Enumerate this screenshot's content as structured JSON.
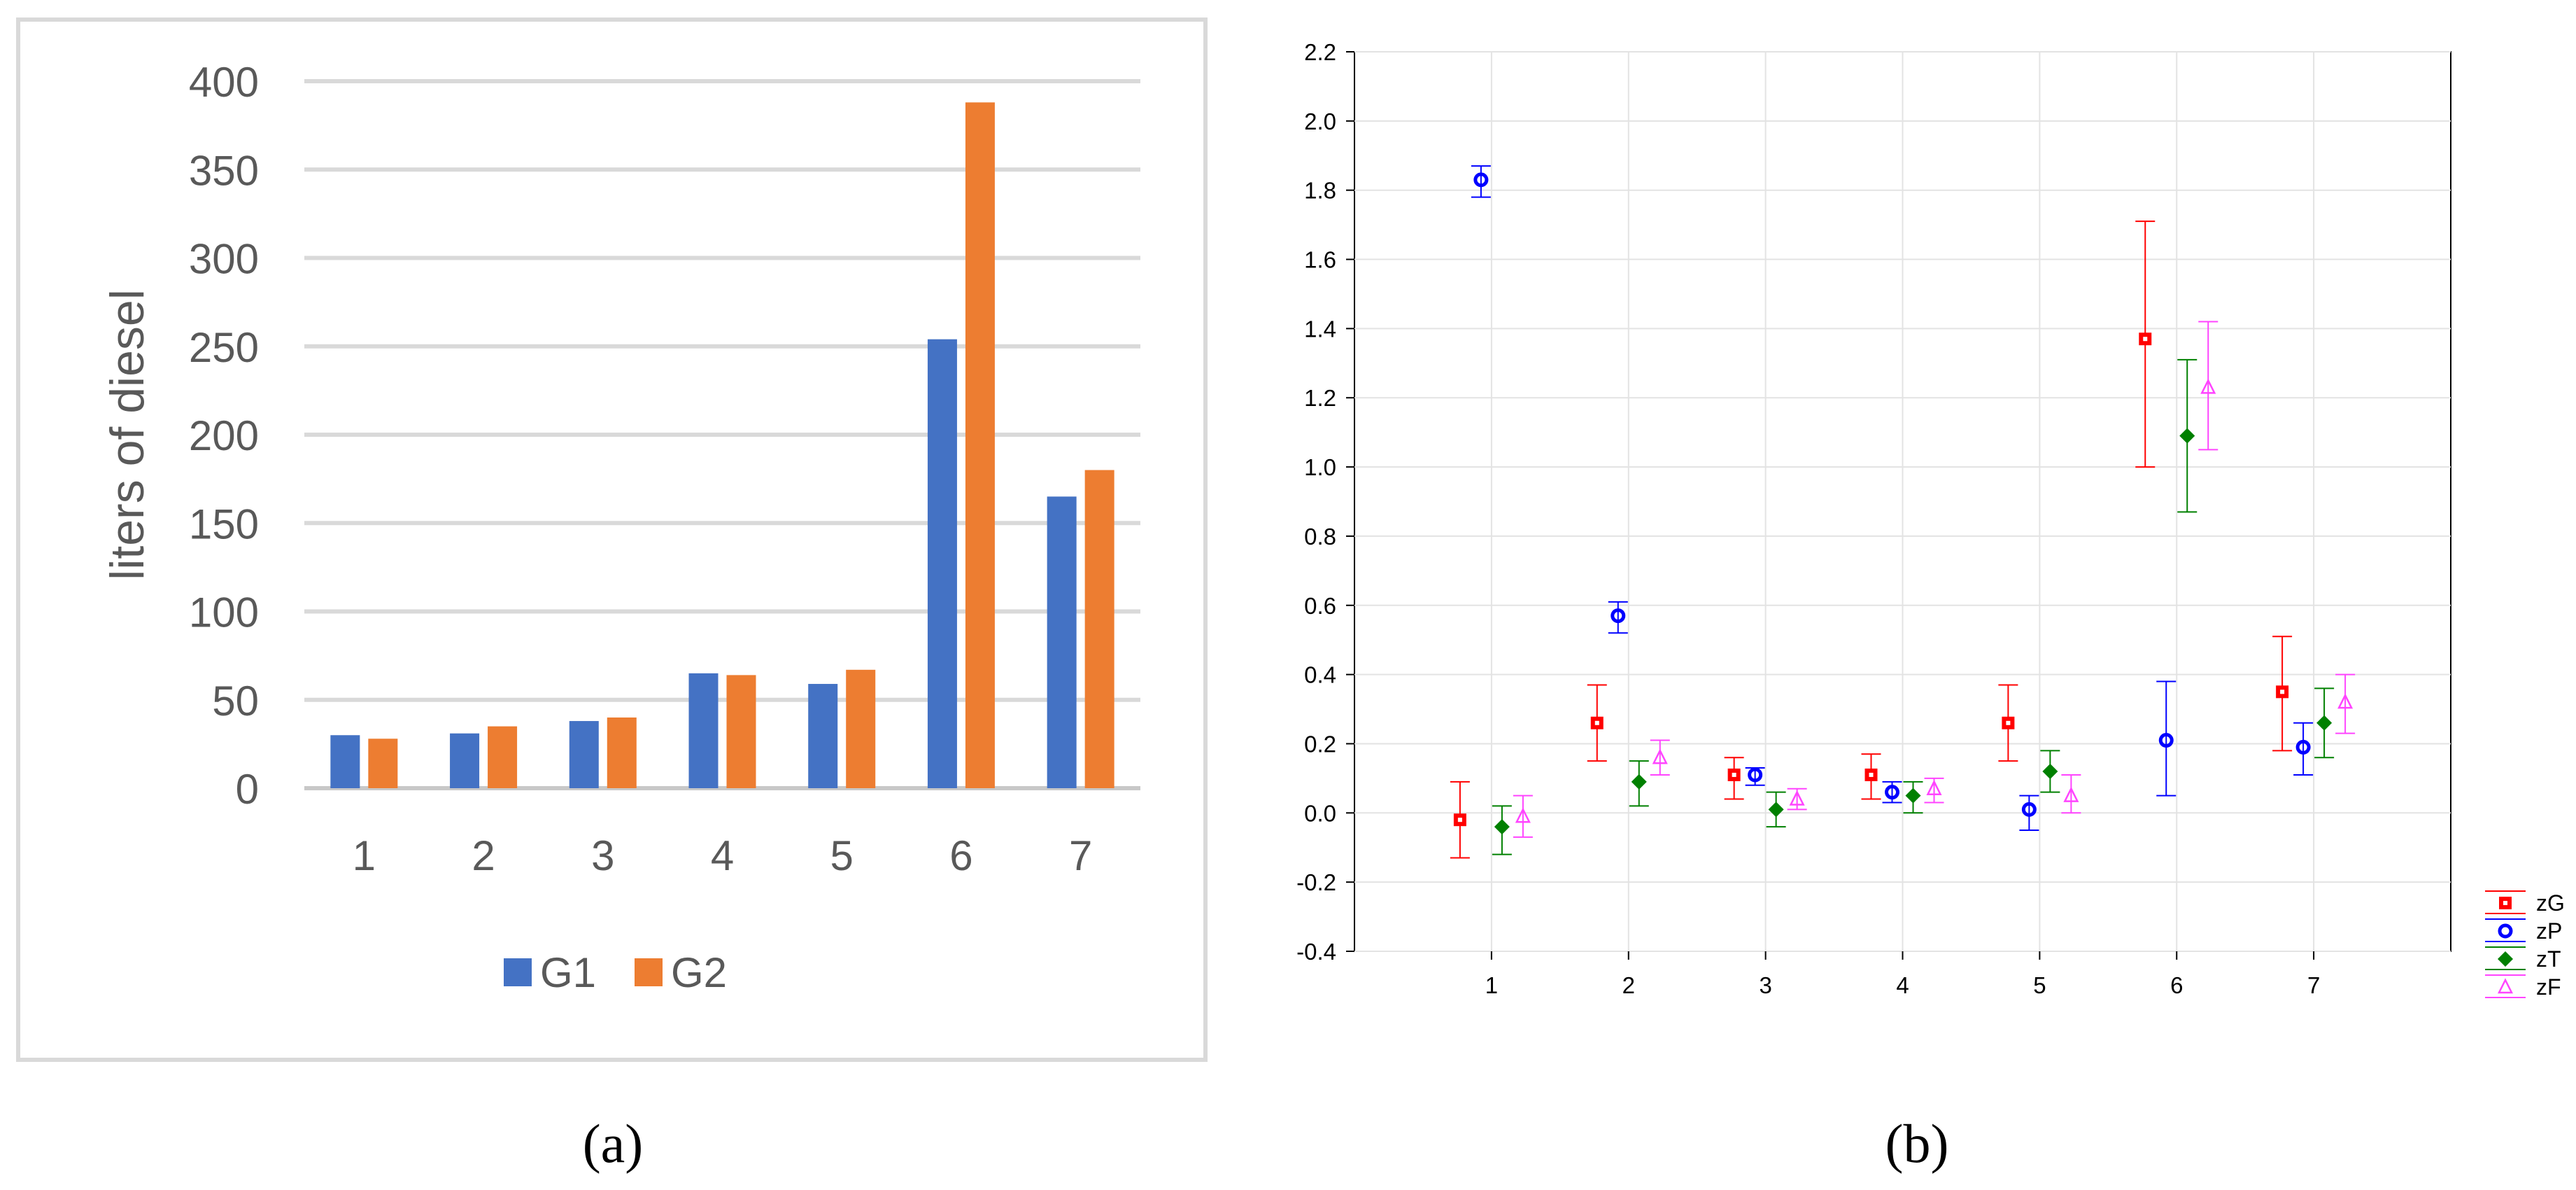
{
  "captions": {
    "a": "(a)",
    "b": "(b)"
  },
  "colors": {
    "G1": "#4472c4",
    "G2": "#ed7d31",
    "zG": "#ff0000",
    "zP": "#0000ff",
    "zT": "#008000",
    "zF": "#ff44ff"
  },
  "chart_data": [
    {
      "type": "bar",
      "title": "",
      "xlabel": "",
      "ylabel": "liters of diesel",
      "categories": [
        "1",
        "2",
        "3",
        "4",
        "5",
        "6",
        "7"
      ],
      "ylim": [
        0,
        400
      ],
      "yticks": [
        0,
        50,
        100,
        150,
        200,
        250,
        300,
        350,
        400
      ],
      "grid": true,
      "legend_position": "bottom",
      "series": [
        {
          "name": "G1",
          "values": [
            30,
            31,
            38,
            65,
            59,
            254,
            165
          ]
        },
        {
          "name": "G2",
          "values": [
            28,
            35,
            40,
            64,
            67,
            388,
            180
          ]
        }
      ]
    },
    {
      "type": "scatter",
      "title": "",
      "xlabel": "",
      "ylabel": "",
      "categories": [
        "1",
        "2",
        "3",
        "4",
        "5",
        "6",
        "7"
      ],
      "ylim": [
        -0.4,
        2.2
      ],
      "yticks": [
        "-0.4",
        "-0.2",
        "0.0",
        "0.2",
        "0.4",
        "0.6",
        "0.8",
        "1.0",
        "1.2",
        "1.4",
        "1.6",
        "1.8",
        "2.0",
        "2.2"
      ],
      "grid": true,
      "legend_position": "right",
      "error_bars": true,
      "series": [
        {
          "name": "zG",
          "marker": "square",
          "values": [
            -0.02,
            0.26,
            0.11,
            0.11,
            0.26,
            1.37,
            0.35
          ],
          "lower": [
            -0.13,
            0.15,
            0.04,
            0.04,
            0.15,
            1.0,
            0.18
          ],
          "upper": [
            0.09,
            0.37,
            0.16,
            0.17,
            0.37,
            1.71,
            0.51
          ]
        },
        {
          "name": "zP",
          "marker": "circle",
          "values": [
            1.83,
            0.57,
            0.11,
            0.06,
            0.01,
            0.21,
            0.19
          ],
          "lower": [
            1.78,
            0.52,
            0.08,
            0.03,
            -0.05,
            0.05,
            0.11
          ],
          "upper": [
            1.87,
            0.61,
            0.13,
            0.09,
            0.05,
            0.38,
            0.26
          ]
        },
        {
          "name": "zT",
          "marker": "diamond",
          "values": [
            -0.04,
            0.09,
            0.01,
            0.05,
            0.12,
            1.09,
            0.26
          ],
          "lower": [
            -0.12,
            0.02,
            -0.04,
            0.0,
            0.06,
            0.87,
            0.16
          ],
          "upper": [
            0.02,
            0.15,
            0.06,
            0.09,
            0.18,
            1.31,
            0.36
          ]
        },
        {
          "name": "zF",
          "marker": "triangle",
          "values": [
            -0.01,
            0.16,
            0.04,
            0.07,
            0.05,
            1.23,
            0.32
          ],
          "lower": [
            -0.07,
            0.11,
            0.01,
            0.03,
            0.0,
            1.05,
            0.23
          ],
          "upper": [
            0.05,
            0.21,
            0.07,
            0.1,
            0.11,
            1.42,
            0.4
          ]
        }
      ]
    }
  ]
}
